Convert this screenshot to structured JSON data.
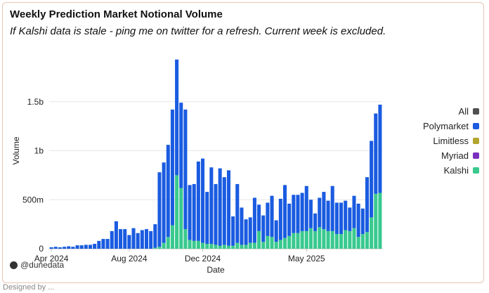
{
  "chart_data": {
    "type": "bar",
    "stacked": true,
    "title": "Weekly Prediction Market Notional Volume",
    "subtitle": "If Kalshi data is stale - ping me on twitter for a refresh. Current week is excluded.",
    "xlabel": "Date",
    "ylabel": "Volume",
    "ylim": [
      0,
      2000000000
    ],
    "yticks": [
      {
        "value": 0,
        "label": "0"
      },
      {
        "value": 500000000,
        "label": "500m"
      },
      {
        "value": 1000000000,
        "label": "1b"
      },
      {
        "value": 1500000000,
        "label": "1.5b"
      }
    ],
    "xticks": [
      {
        "index": 0,
        "label": "Apr 2024"
      },
      {
        "index": 18,
        "label": "Aug 2024"
      },
      {
        "index": 35,
        "label": "Dec 2024"
      },
      {
        "index": 59,
        "label": "May 2025"
      }
    ],
    "grid": true,
    "legend_position": "right",
    "series": [
      {
        "name": "Polymarket",
        "color": "#1a5be0",
        "values": [
          15,
          20,
          15,
          20,
          25,
          20,
          35,
          35,
          40,
          40,
          50,
          80,
          100,
          100,
          180,
          280,
          200,
          200,
          140,
          210,
          160,
          190,
          200,
          180,
          240,
          760,
          820,
          940,
          1180,
          1180,
          870,
          1220,
          560,
          580,
          810,
          860,
          530,
          780,
          620,
          790,
          690,
          770,
          300,
          600,
          380,
          260,
          260,
          460,
          270,
          270,
          340,
          420,
          220,
          420,
          540,
          330,
          390,
          390,
          390,
          460,
          290,
          180,
          300,
          380,
          310,
          460,
          320,
          320,
          300,
          240,
          330,
          340,
          260,
          560,
          780,
          820,
          900
        ]
      },
      {
        "name": "Limitless",
        "color": "#b3a62e",
        "values": []
      },
      {
        "name": "Myriad",
        "color": "#7b2fbe",
        "values": []
      },
      {
        "name": "Kalshi",
        "color": "#39c98e",
        "values": [
          0,
          0,
          0,
          0,
          0,
          0,
          0,
          0,
          0,
          0,
          0,
          0,
          0,
          0,
          0,
          0,
          0,
          0,
          0,
          0,
          0,
          0,
          0,
          0,
          10,
          20,
          60,
          120,
          240,
          750,
          620,
          200,
          90,
          80,
          80,
          60,
          50,
          50,
          40,
          30,
          40,
          30,
          30,
          60,
          40,
          40,
          60,
          60,
          180,
          70,
          130,
          120,
          70,
          90,
          110,
          130,
          160,
          160,
          180,
          180,
          210,
          180,
          220,
          200,
          180,
          180,
          150,
          150,
          190,
          180,
          210,
          120,
          150,
          170,
          320,
          560,
          570
        ]
      },
      {
        "name": "All",
        "color": "#505050",
        "values": []
      }
    ]
  },
  "legend": {
    "items": [
      {
        "label": "All",
        "color": "#505050"
      },
      {
        "label": "Polymarket",
        "color": "#1a5be0"
      },
      {
        "label": "Limitless",
        "color": "#b3a62e"
      },
      {
        "label": "Myriad",
        "color": "#7b2fbe"
      },
      {
        "label": "Kalshi",
        "color": "#39c98e"
      }
    ]
  },
  "brand": "@dunedata",
  "footer": "Designed by ..."
}
